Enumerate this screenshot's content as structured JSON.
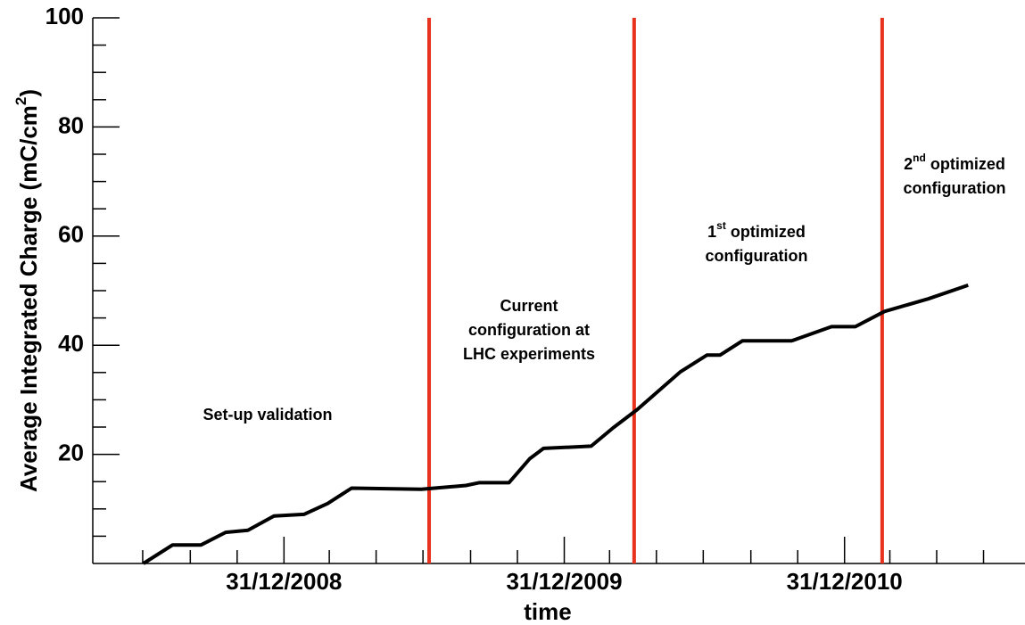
{
  "chart_data": {
    "type": "line",
    "xlabel": "time",
    "ylabel": [
      {
        "text": "Average Integrated Charge (mC/cm"
      },
      {
        "sup": "2"
      },
      {
        "text": ")"
      }
    ],
    "xlim": [
      "2008-04-26",
      "2011-08-23"
    ],
    "ylim": [
      0,
      100
    ],
    "xticks": [
      {
        "value": "2008-12-31",
        "label": "31/12/2008"
      },
      {
        "value": "2009-12-31",
        "label": "31/12/2009"
      },
      {
        "value": "2010-12-31",
        "label": "31/12/2010"
      }
    ],
    "xminorticks": [
      "2008-06-30",
      "2008-08-31",
      "2008-10-31",
      "2009-02-28",
      "2009-04-30",
      "2009-06-30",
      "2009-08-31",
      "2009-10-31",
      "2010-02-28",
      "2010-04-30",
      "2010-06-30",
      "2010-08-31",
      "2010-10-31",
      "2011-02-28",
      "2011-04-30",
      "2011-06-30"
    ],
    "yticks": [
      20,
      40,
      60,
      80,
      100
    ],
    "yminorticks": [
      5,
      10,
      15,
      25,
      30,
      35,
      45,
      50,
      55,
      65,
      70,
      75,
      85,
      90,
      95
    ],
    "series": [
      {
        "color": "#000000",
        "x": [
          "2008-07-01",
          "2008-08-08",
          "2008-09-14",
          "2008-10-16",
          "2008-11-14",
          "2008-12-18",
          "2009-01-26",
          "2009-02-26",
          "2009-03-29",
          "2009-06-28",
          "2009-08-25",
          "2009-09-11",
          "2009-10-20",
          "2009-11-16",
          "2009-12-04",
          "2010-02-04",
          "2010-03-05",
          "2010-04-05",
          "2010-05-31",
          "2010-07-05",
          "2010-07-22",
          "2010-08-20",
          "2010-10-23",
          "2010-12-14",
          "2011-01-14",
          "2011-02-21",
          "2011-04-19",
          "2011-06-10"
        ],
        "values": [
          0,
          3.4,
          3.4,
          5.7,
          6.1,
          8.7,
          9.0,
          11,
          13.8,
          13.6,
          14.3,
          14.8,
          14.8,
          19.2,
          21.1,
          21.5,
          24.9,
          28.2,
          35.1,
          38.2,
          38.2,
          40.8,
          40.8,
          43.4,
          43.4,
          46.2,
          48.5,
          51
        ]
      }
    ],
    "vlines": [
      {
        "x": "2009-07-08",
        "color": "#e8321e"
      },
      {
        "x": "2010-04-01",
        "color": "#e8321e"
      },
      {
        "x": "2011-02-18",
        "color": "#e8321e"
      }
    ],
    "annotations": [
      {
        "lines": [
          [
            {
              "text": "Set-up validation"
            }
          ]
        ]
      },
      {
        "lines": [
          [
            {
              "text": "Current"
            }
          ],
          [
            {
              "text": "configuration at"
            }
          ],
          [
            {
              "text": "LHC experiments"
            }
          ]
        ]
      },
      {
        "lines": [
          [
            {
              "text": "1"
            },
            {
              "sup": "st"
            },
            {
              "text": " optimized"
            }
          ],
          [
            {
              "text": "configuration"
            }
          ]
        ]
      },
      {
        "lines": [
          [
            {
              "text": "2"
            },
            {
              "sup": "nd"
            },
            {
              "text": " optimized"
            }
          ],
          [
            {
              "text": "configuration"
            }
          ]
        ]
      }
    ]
  }
}
